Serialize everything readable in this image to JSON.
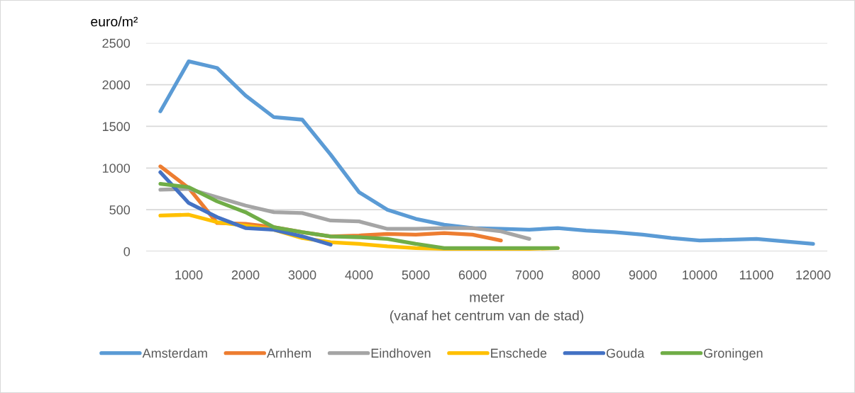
{
  "chart_data": {
    "type": "line",
    "ylabel": "euro/m²",
    "xlabel": "meter\n(vanaf het centrum van de stad)",
    "x": [
      500,
      1000,
      1500,
      2000,
      2500,
      3000,
      3500,
      4000,
      4500,
      5000,
      5500,
      6000,
      6500,
      7000,
      7500,
      8000,
      8500,
      9000,
      9500,
      10000,
      10500,
      11000,
      11500,
      12000
    ],
    "xlim": [
      250,
      12250
    ],
    "xticks": [
      1000,
      2000,
      3000,
      4000,
      5000,
      6000,
      7000,
      8000,
      9000,
      10000,
      11000,
      12000
    ],
    "ylim": [
      0,
      2500
    ],
    "yticks": [
      0,
      500,
      1000,
      1500,
      2000,
      2500
    ],
    "grid": "y",
    "legend": "bottom",
    "series": [
      {
        "name": "Amsterdam",
        "color": "#5b9bd5",
        "values": [
          1680,
          2280,
          2200,
          1870,
          1610,
          1580,
          1160,
          710,
          500,
          390,
          320,
          280,
          270,
          260,
          280,
          250,
          230,
          200,
          160,
          130,
          140,
          150,
          120,
          90
        ]
      },
      {
        "name": "Arnhem",
        "color": "#ed7d31",
        "values": [
          1020,
          760,
          340,
          330,
          290,
          230,
          180,
          190,
          210,
          200,
          220,
          200,
          130,
          null,
          null,
          null,
          null,
          null,
          null,
          null,
          null,
          null,
          null,
          null
        ]
      },
      {
        "name": "Eindhoven",
        "color": "#a5a5a5",
        "values": [
          740,
          750,
          650,
          550,
          470,
          460,
          370,
          360,
          270,
          270,
          280,
          280,
          240,
          150,
          null,
          null,
          null,
          null,
          null,
          null,
          null,
          null,
          null,
          null
        ]
      },
      {
        "name": "Enschede",
        "color": "#ffc000",
        "values": [
          430,
          440,
          350,
          310,
          260,
          160,
          110,
          90,
          60,
          40,
          30,
          30,
          30,
          30,
          40,
          null,
          null,
          null,
          null,
          null,
          null,
          null,
          null,
          null
        ]
      },
      {
        "name": "Gouda",
        "color": "#4472c4",
        "values": [
          950,
          580,
          410,
          280,
          260,
          180,
          80,
          null,
          null,
          null,
          null,
          null,
          null,
          null,
          null,
          null,
          null,
          null,
          null,
          null,
          null,
          null,
          null,
          null
        ]
      },
      {
        "name": "Groningen",
        "color": "#70ad47",
        "values": [
          810,
          770,
          600,
          470,
          290,
          230,
          180,
          170,
          150,
          90,
          40,
          40,
          40,
          40,
          40,
          null,
          null,
          null,
          null,
          null,
          null,
          null,
          null,
          null
        ]
      }
    ]
  }
}
